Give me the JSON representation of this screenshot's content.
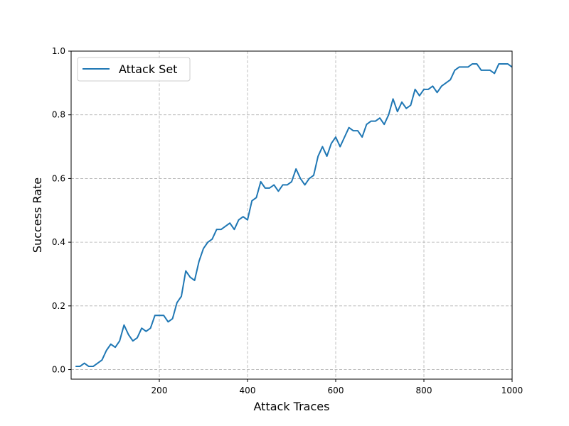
{
  "chart_data": {
    "type": "line",
    "xlabel": "Attack Traces",
    "ylabel": "Success Rate",
    "xlim": [
      0,
      1000
    ],
    "ylim": [
      -0.03,
      1.0
    ],
    "xticks": [
      200,
      400,
      600,
      800,
      1000
    ],
    "xtick_labels": [
      "200",
      "400",
      "600",
      "800",
      "1000"
    ],
    "yticks": [
      0.0,
      0.2,
      0.4,
      0.6,
      0.8,
      1.0
    ],
    "ytick_labels": [
      "0.0",
      "0.2",
      "0.4",
      "0.6",
      "0.8",
      "1.0"
    ],
    "grid": true,
    "legend_position": "top-left",
    "series": [
      {
        "name": "Attack Set",
        "color": "#1f77b4",
        "x": [
          10,
          20,
          30,
          40,
          50,
          60,
          70,
          80,
          90,
          100,
          110,
          120,
          130,
          140,
          150,
          160,
          170,
          180,
          190,
          200,
          210,
          220,
          230,
          240,
          250,
          260,
          270,
          280,
          290,
          300,
          310,
          320,
          330,
          340,
          350,
          360,
          370,
          380,
          390,
          400,
          410,
          420,
          430,
          440,
          450,
          460,
          470,
          480,
          490,
          500,
          510,
          520,
          530,
          540,
          550,
          560,
          570,
          580,
          590,
          600,
          610,
          620,
          630,
          640,
          650,
          660,
          670,
          680,
          690,
          700,
          710,
          720,
          730,
          740,
          750,
          760,
          770,
          780,
          790,
          800,
          810,
          820,
          830,
          840,
          850,
          860,
          870,
          880,
          890,
          900,
          910,
          920,
          930,
          940,
          950,
          960,
          970,
          980,
          990,
          1000
        ],
        "values": [
          0.01,
          0.01,
          0.02,
          0.01,
          0.01,
          0.02,
          0.03,
          0.06,
          0.08,
          0.07,
          0.09,
          0.14,
          0.11,
          0.09,
          0.1,
          0.13,
          0.12,
          0.13,
          0.17,
          0.17,
          0.17,
          0.15,
          0.16,
          0.21,
          0.23,
          0.31,
          0.29,
          0.28,
          0.34,
          0.38,
          0.4,
          0.41,
          0.44,
          0.44,
          0.45,
          0.46,
          0.44,
          0.47,
          0.48,
          0.47,
          0.53,
          0.54,
          0.59,
          0.57,
          0.57,
          0.58,
          0.56,
          0.58,
          0.58,
          0.59,
          0.63,
          0.6,
          0.58,
          0.6,
          0.61,
          0.67,
          0.7,
          0.67,
          0.71,
          0.73,
          0.7,
          0.73,
          0.76,
          0.75,
          0.75,
          0.73,
          0.77,
          0.78,
          0.78,
          0.79,
          0.77,
          0.8,
          0.85,
          0.81,
          0.84,
          0.82,
          0.83,
          0.88,
          0.86,
          0.88,
          0.88,
          0.89,
          0.87,
          0.89,
          0.9,
          0.91,
          0.94,
          0.95,
          0.95,
          0.95,
          0.96,
          0.96,
          0.94,
          0.94,
          0.94,
          0.93,
          0.96,
          0.96,
          0.96,
          0.95
        ]
      }
    ]
  }
}
